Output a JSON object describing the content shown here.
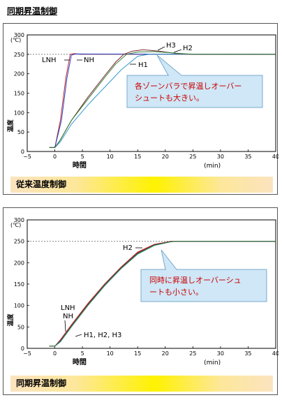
{
  "page_title": "同期昇温制御",
  "charts": [
    {
      "band_label": "従来温度制御",
      "callout": "各ゾーンバラで昇温しオーバーシュートも大きい。",
      "callout_lines": [
        "各ゾーンバラで昇温しオーバー",
        "シュートも大きい。"
      ],
      "labels": {
        "lnh": "LNH",
        "nh": "NH",
        "h1": "H1",
        "h2": "H2",
        "h3": "H3"
      }
    },
    {
      "band_label": "同期昇温制御",
      "callout": "同時に昇温しオーバーシュートも小さい。",
      "callout_lines": [
        "同時に昇温しオーバーシュ",
        "ートも小さい。"
      ],
      "labels": {
        "lnh": "LNH",
        "nh": "NH",
        "h2": "H2",
        "h123": "H1, H2, H3"
      }
    }
  ],
  "chart_data": [
    {
      "type": "line",
      "xlabel": "時間",
      "xunit": "(min)",
      "ylabel": "温度",
      "yunit": "(℃)",
      "xlim": [
        -5,
        40
      ],
      "ylim": [
        0,
        300
      ],
      "xticks": [
        -5,
        0,
        5,
        10,
        15,
        20,
        25,
        30,
        35,
        40
      ],
      "yticks": [
        0,
        50,
        100,
        150,
        200,
        250,
        300
      ],
      "reference_line": 250,
      "series": [
        {
          "name": "LNH",
          "color": "#cc2222",
          "points": [
            [
              -1,
              10
            ],
            [
              0,
              10
            ],
            [
              1,
              80
            ],
            [
              2,
              190
            ],
            [
              2.8,
              250
            ],
            [
              3.5,
              252
            ],
            [
              4.5,
              250
            ],
            [
              40,
              250
            ]
          ]
        },
        {
          "name": "NH",
          "color": "#2244cc",
          "points": [
            [
              -1,
              10
            ],
            [
              0,
              10
            ],
            [
              1.2,
              80
            ],
            [
              2.2,
              190
            ],
            [
              3,
              248
            ],
            [
              3.8,
              251
            ],
            [
              40,
              250
            ]
          ]
        },
        {
          "name": "H1",
          "color": "#3399cc",
          "points": [
            [
              -1,
              10
            ],
            [
              0,
              10
            ],
            [
              1,
              25
            ],
            [
              3,
              70
            ],
            [
              6,
              120
            ],
            [
              9,
              165
            ],
            [
              12,
              210
            ],
            [
              15,
              245
            ],
            [
              17,
              250
            ],
            [
              40,
              250
            ]
          ]
        },
        {
          "name": "H2",
          "color": "#7a2a2a",
          "points": [
            [
              -1,
              10
            ],
            [
              0,
              10
            ],
            [
              1,
              30
            ],
            [
              3,
              80
            ],
            [
              6,
              140
            ],
            [
              9,
              195
            ],
            [
              11,
              230
            ],
            [
              12.5,
              250
            ],
            [
              14,
              258
            ],
            [
              16,
              262
            ],
            [
              19,
              258
            ],
            [
              22,
              252
            ],
            [
              25,
              250
            ],
            [
              40,
              250
            ]
          ]
        },
        {
          "name": "H3",
          "color": "#2f7a3a",
          "points": [
            [
              -1,
              10
            ],
            [
              0,
              10
            ],
            [
              1,
              30
            ],
            [
              3,
              80
            ],
            [
              6,
              135
            ],
            [
              9,
              190
            ],
            [
              11,
              225
            ],
            [
              13,
              250
            ],
            [
              15,
              256
            ],
            [
              18,
              257
            ],
            [
              21,
              254
            ],
            [
              24,
              251
            ],
            [
              26,
              250
            ],
            [
              40,
              250
            ]
          ]
        }
      ]
    },
    {
      "type": "line",
      "xlabel": "時間",
      "xunit": "(min)",
      "ylabel": "温度",
      "yunit": "(℃)",
      "xlim": [
        -5,
        40
      ],
      "ylim": [
        0,
        300
      ],
      "xticks": [
        -5,
        0,
        5,
        10,
        15,
        20,
        25,
        30,
        35,
        40
      ],
      "yticks": [
        0,
        50,
        100,
        150,
        200,
        250,
        300
      ],
      "reference_line": 250,
      "series": [
        {
          "name": "LNH",
          "color": "#cc2222",
          "points": [
            [
              -1,
              5
            ],
            [
              0,
              5
            ],
            [
              1,
              20
            ],
            [
              3,
              55
            ],
            [
              6,
              105
            ],
            [
              9,
              150
            ],
            [
              12,
              190
            ],
            [
              15,
              225
            ],
            [
              18,
              243
            ],
            [
              21,
              250
            ],
            [
              40,
              250
            ]
          ]
        },
        {
          "name": "NH",
          "color": "#2244cc",
          "points": [
            [
              -1,
              5
            ],
            [
              0,
              5
            ],
            [
              1,
              18
            ],
            [
              3,
              52
            ],
            [
              6,
              102
            ],
            [
              9,
              148
            ],
            [
              12,
              188
            ],
            [
              15,
              222
            ],
            [
              18,
              241
            ],
            [
              21,
              249
            ],
            [
              22,
              250
            ],
            [
              40,
              250
            ]
          ]
        },
        {
          "name": "H1",
          "color": "#3399cc",
          "points": [
            [
              -1,
              5
            ],
            [
              0,
              5
            ],
            [
              1,
              15
            ],
            [
              3,
              50
            ],
            [
              6,
              100
            ],
            [
              9,
              146
            ],
            [
              12,
              186
            ],
            [
              15,
              220
            ],
            [
              18,
              240
            ],
            [
              21,
              249
            ],
            [
              22,
              250
            ],
            [
              40,
              250
            ]
          ]
        },
        {
          "name": "H2",
          "color": "#7a2a2a",
          "points": [
            [
              -1,
              5
            ],
            [
              0,
              5
            ],
            [
              1,
              17
            ],
            [
              3,
              53
            ],
            [
              6,
              103
            ],
            [
              9,
              149
            ],
            [
              12,
              189
            ],
            [
              15,
              223
            ],
            [
              18,
              242
            ],
            [
              21,
              250
            ],
            [
              40,
              250
            ]
          ]
        },
        {
          "name": "H3",
          "color": "#2f7a3a",
          "points": [
            [
              -1,
              5
            ],
            [
              0,
              5
            ],
            [
              1,
              16
            ],
            [
              3,
              51
            ],
            [
              6,
              101
            ],
            [
              9,
              147
            ],
            [
              12,
              187
            ],
            [
              15,
              221
            ],
            [
              18,
              241
            ],
            [
              21,
              249
            ],
            [
              22,
              250
            ],
            [
              40,
              250
            ]
          ]
        }
      ]
    }
  ]
}
